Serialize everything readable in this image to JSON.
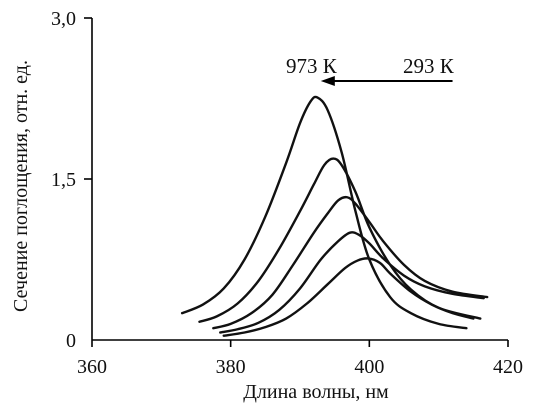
{
  "chart_data": {
    "type": "line",
    "xlabel": "Длина волны, нм",
    "ylabel": "Сечение поглощения, отн. ед.",
    "xlim": [
      360,
      420
    ],
    "ylim": [
      0,
      3.0
    ],
    "x_ticks": [
      "360",
      "380",
      "400",
      "420"
    ],
    "y_ticks": [
      "0",
      "1,5",
      "3,0"
    ],
    "x_tick_values": [
      360,
      380,
      400,
      420
    ],
    "y_tick_values": [
      0,
      1.5,
      3.0
    ],
    "annotations": {
      "left": "973 К",
      "right": "293 К",
      "arrow_from_x": 412,
      "arrow_to_x": 393
    },
    "series": [
      {
        "values": [
          [
            373.0,
            0.25
          ],
          [
            376,
            0.33
          ],
          [
            379,
            0.48
          ],
          [
            382,
            0.75
          ],
          [
            385,
            1.15
          ],
          [
            388,
            1.65
          ],
          [
            390,
            2.02
          ],
          [
            391.5,
            2.22
          ],
          [
            392.5,
            2.26
          ],
          [
            394,
            2.14
          ],
          [
            396,
            1.75
          ],
          [
            398,
            1.2
          ],
          [
            400,
            0.75
          ],
          [
            403,
            0.4
          ],
          [
            406,
            0.25
          ],
          [
            410,
            0.15
          ],
          [
            414,
            0.11
          ]
        ]
      },
      {
        "values": [
          [
            375.5,
            0.17
          ],
          [
            378,
            0.22
          ],
          [
            381,
            0.34
          ],
          [
            384,
            0.55
          ],
          [
            387,
            0.85
          ],
          [
            390,
            1.2
          ],
          [
            392,
            1.45
          ],
          [
            393.5,
            1.63
          ],
          [
            394.8,
            1.69
          ],
          [
            396,
            1.63
          ],
          [
            398,
            1.38
          ],
          [
            400,
            1.05
          ],
          [
            403,
            0.7
          ],
          [
            406,
            0.47
          ],
          [
            410,
            0.3
          ],
          [
            416,
            0.2
          ]
        ]
      },
      {
        "values": [
          [
            377.5,
            0.11
          ],
          [
            380,
            0.15
          ],
          [
            383,
            0.25
          ],
          [
            386,
            0.42
          ],
          [
            389,
            0.7
          ],
          [
            392,
            1.0
          ],
          [
            394,
            1.18
          ],
          [
            395.5,
            1.3
          ],
          [
            396.8,
            1.33
          ],
          [
            398,
            1.27
          ],
          [
            400,
            1.1
          ],
          [
            402,
            0.92
          ],
          [
            405,
            0.7
          ],
          [
            408,
            0.55
          ],
          [
            412,
            0.45
          ],
          [
            417,
            0.4
          ]
        ]
      },
      {
        "values": [
          [
            378.5,
            0.07
          ],
          [
            381,
            0.1
          ],
          [
            384,
            0.16
          ],
          [
            387,
            0.28
          ],
          [
            390,
            0.48
          ],
          [
            393,
            0.75
          ],
          [
            395.5,
            0.92
          ],
          [
            397.2,
            1.0
          ],
          [
            398.5,
            0.98
          ],
          [
            400,
            0.9
          ],
          [
            402,
            0.76
          ],
          [
            405,
            0.6
          ],
          [
            408,
            0.5
          ],
          [
            412,
            0.43
          ],
          [
            416.5,
            0.39
          ]
        ]
      },
      {
        "values": [
          [
            379,
            0.04
          ],
          [
            382,
            0.07
          ],
          [
            385,
            0.12
          ],
          [
            388,
            0.2
          ],
          [
            391,
            0.34
          ],
          [
            394,
            0.52
          ],
          [
            396.5,
            0.67
          ],
          [
            398.3,
            0.74
          ],
          [
            399.8,
            0.76
          ],
          [
            401.5,
            0.72
          ],
          [
            403,
            0.62
          ],
          [
            406,
            0.45
          ],
          [
            409,
            0.33
          ],
          [
            412,
            0.25
          ],
          [
            415,
            0.2
          ]
        ]
      }
    ]
  }
}
